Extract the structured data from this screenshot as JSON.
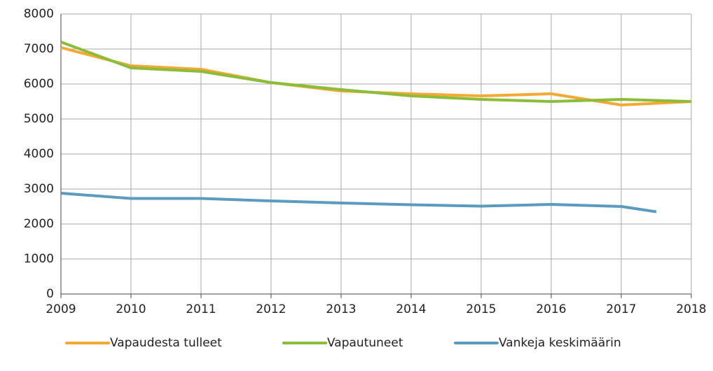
{
  "chart_data": {
    "type": "line",
    "xlim": [
      2009,
      2018
    ],
    "xticks": [
      2009,
      2010,
      2011,
      2012,
      2013,
      2014,
      2015,
      2016,
      2017,
      2018
    ],
    "ylim": [
      0,
      8000
    ],
    "yticks": [
      0,
      1000,
      2000,
      3000,
      4000,
      5000,
      6000,
      7000,
      8000
    ],
    "grid": true,
    "legend": "bottom",
    "series": [
      {
        "name": "Vapaudesta tulleet",
        "color": "#f5a833",
        "x": [
          2009,
          2010,
          2011,
          2012,
          2013,
          2014,
          2015,
          2016,
          2017,
          2018
        ],
        "values": [
          7040,
          6520,
          6420,
          6040,
          5800,
          5720,
          5660,
          5720,
          5400,
          5500
        ]
      },
      {
        "name": "Vapautuneet",
        "color": "#8bbd3a",
        "x": [
          2009,
          2010,
          2011,
          2012,
          2013,
          2014,
          2015,
          2016,
          2017,
          2018
        ],
        "values": [
          7200,
          6460,
          6360,
          6040,
          5840,
          5660,
          5560,
          5500,
          5560,
          5500
        ]
      },
      {
        "name": "Vankeja keskimäärin",
        "color": "#5b9bc0",
        "x": [
          2009,
          2010,
          2011,
          2012,
          2013,
          2014,
          2015,
          2016,
          2017,
          2017.5
        ],
        "values": [
          2880,
          2730,
          2730,
          2660,
          2600,
          2550,
          2510,
          2560,
          2500,
          2350
        ]
      }
    ]
  }
}
